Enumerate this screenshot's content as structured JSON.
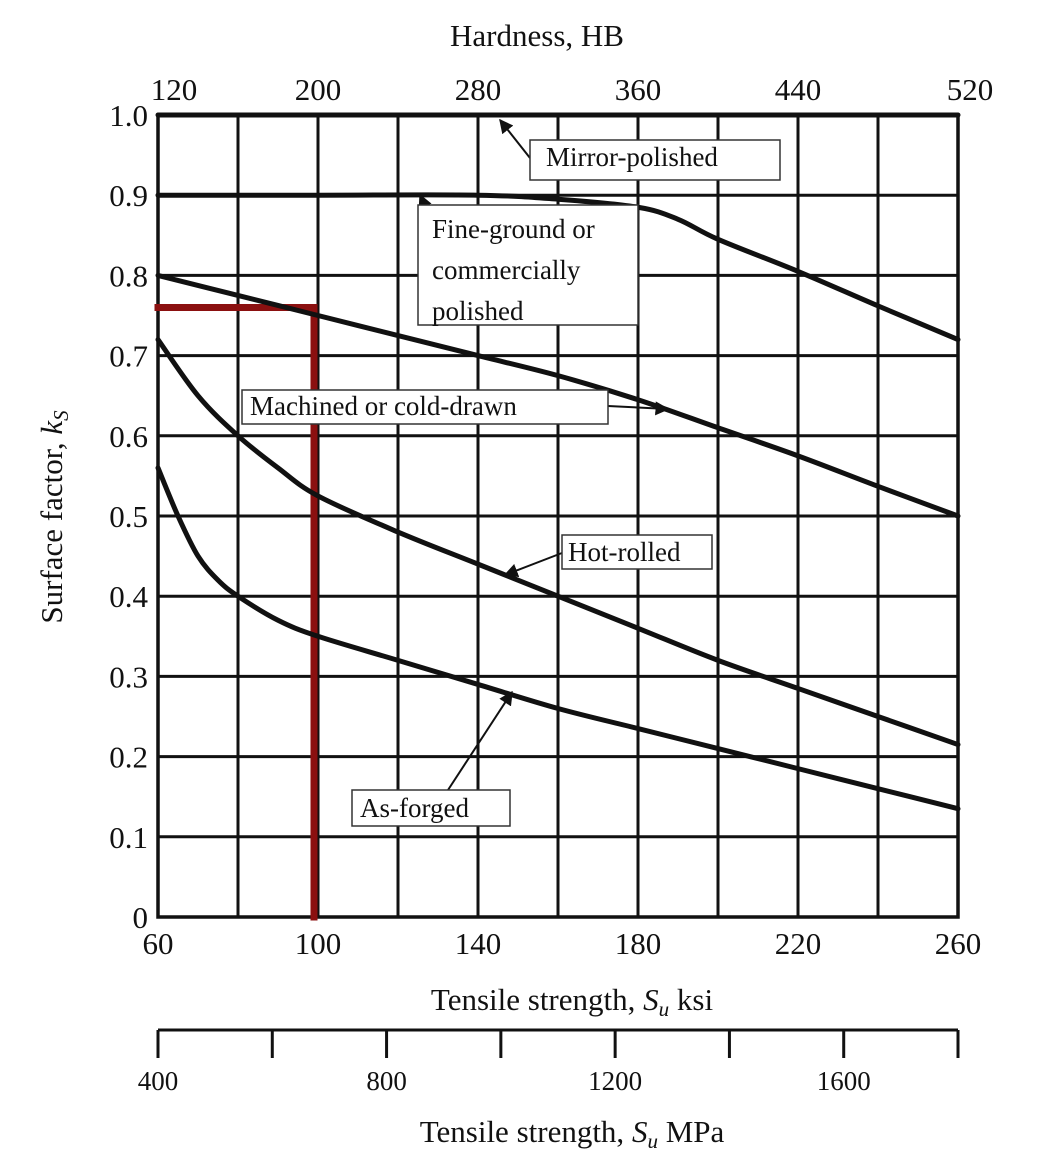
{
  "chart_data": {
    "type": "line",
    "title": "",
    "top_axis": {
      "label": "Hardness, HB",
      "range": [
        120,
        520
      ],
      "ticks": [
        "120",
        "200",
        "280",
        "360",
        "440",
        "520"
      ],
      "tick_values": [
        120,
        200,
        280,
        360,
        440,
        520
      ]
    },
    "x_axis": {
      "label_prefix": "Tensile strength, ",
      "label_symbol": "S",
      "label_subscript": "u",
      "label_suffix": " ksi",
      "range": [
        60,
        260
      ],
      "ticks": [
        "60",
        "100",
        "140",
        "180",
        "220",
        "260"
      ],
      "tick_values": [
        60,
        100,
        140,
        180,
        220,
        260
      ],
      "gridlines": [
        60,
        80,
        100,
        120,
        140,
        160,
        180,
        200,
        220,
        240,
        260
      ]
    },
    "y_axis": {
      "label_prefix": "Surface factor, ",
      "label_symbol": "k",
      "label_subscript": "S",
      "range": [
        0,
        1.0
      ],
      "ticks": [
        "0",
        "0.1",
        "0.2",
        "0.3",
        "0.4",
        "0.5",
        "0.6",
        "0.7",
        "0.8",
        "0.9",
        "1.0"
      ],
      "tick_values": [
        0,
        0.1,
        0.2,
        0.3,
        0.4,
        0.5,
        0.6,
        0.7,
        0.8,
        0.9,
        1.0
      ]
    },
    "secondary_x_axis": {
      "label_prefix": "Tensile strength, ",
      "label_symbol": "S",
      "label_subscript": "u",
      "label_suffix": " MPa",
      "range": [
        400,
        1800
      ],
      "major_ticks": [
        400,
        600,
        800,
        1000,
        1200,
        1400,
        1600,
        1800
      ],
      "labels": [
        "400",
        "800",
        "1200",
        "1600"
      ],
      "label_values": [
        400,
        800,
        1200,
        1600
      ]
    },
    "grid": true,
    "series": [
      {
        "name": "Mirror-polished",
        "x": [
          60,
          260
        ],
        "y": [
          1.0,
          1.0
        ]
      },
      {
        "name": "Fine-ground or commercially polished",
        "name_lines": [
          "Fine-ground or",
          "commercially",
          "polished"
        ],
        "x": [
          60,
          100,
          140,
          160,
          180,
          190,
          200,
          220,
          240,
          260
        ],
        "y": [
          0.9,
          0.9,
          0.9,
          0.895,
          0.885,
          0.87,
          0.845,
          0.805,
          0.762,
          0.72
        ]
      },
      {
        "name": "Machined or cold-drawn",
        "x": [
          60,
          80,
          100,
          120,
          140,
          160,
          180,
          200,
          220,
          240,
          260
        ],
        "y": [
          0.8,
          0.775,
          0.75,
          0.725,
          0.7,
          0.675,
          0.645,
          0.61,
          0.575,
          0.537,
          0.5
        ]
      },
      {
        "name": "Hot-rolled",
        "x": [
          60,
          70,
          80,
          90,
          100,
          120,
          140,
          160,
          180,
          200,
          220,
          240,
          260
        ],
        "y": [
          0.72,
          0.65,
          0.6,
          0.56,
          0.525,
          0.48,
          0.44,
          0.4,
          0.36,
          0.32,
          0.285,
          0.25,
          0.215
        ]
      },
      {
        "name": "As-forged",
        "x": [
          60,
          65,
          70,
          75,
          80,
          90,
          100,
          120,
          140,
          160,
          180,
          200,
          220,
          240,
          260
        ],
        "y": [
          0.56,
          0.5,
          0.45,
          0.42,
          0.4,
          0.37,
          0.35,
          0.32,
          0.29,
          0.26,
          0.235,
          0.21,
          0.185,
          0.16,
          0.135
        ]
      }
    ],
    "annotation_lines": {
      "color": "#8b1010",
      "horizontal_at_y": 0.76,
      "vertical_at_x": 99
    }
  }
}
